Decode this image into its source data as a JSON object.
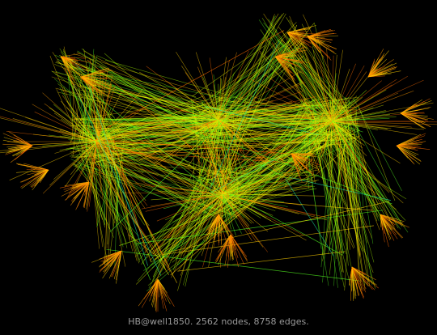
{
  "caption": "HB@well1850. 2562 nodes, 8758 edges.",
  "graph": {
    "background": "#000000",
    "edge_colors": [
      "#ff6a00",
      "#ff9a00",
      "#ffd000",
      "#e8ff00",
      "#aaff00",
      "#55ff20",
      "#20e0a0"
    ]
  }
}
